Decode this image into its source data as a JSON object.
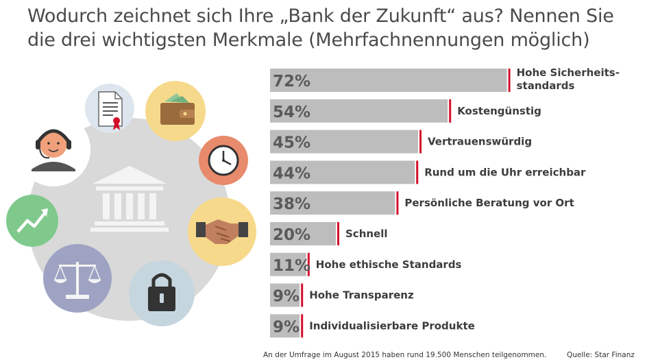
{
  "title": "Wodurch zeichnet sich Ihre „Bank der Zukunft“ aus? Nennen Sie die drei wichtigsten Merkmale (Mehrfachnennungen möglich)",
  "chart_data": {
    "type": "bar",
    "orientation": "horizontal",
    "title": "Wodurch zeichnet sich Ihre „Bank der Zukunft“ aus? Nennen Sie die drei wichtigsten Merkmale (Mehrfachnennungen möglich)",
    "categories": [
      "Hohe Sicherheits-\nstandards",
      "Kostengünstig",
      "Vertrauenswürdig",
      "Rund um die Uhr erreichbar",
      "Persönliche Beratung vor Ort",
      "Schnell",
      "Hohe ethische Standards",
      "Hohe Transparenz",
      "Individualisierbare Produkte"
    ],
    "values": [
      72,
      54,
      45,
      44,
      38,
      20,
      11,
      9,
      9
    ],
    "value_labels": [
      "72%",
      "54%",
      "45%",
      "44%",
      "38%",
      "20%",
      "11%",
      "9%",
      "9%"
    ],
    "unit": "%",
    "grid": false,
    "colors": {
      "bar": "#bdbdbd",
      "marker": "#d3102a",
      "value_text": "#5a5a5a",
      "label_text": "#3c3c3c"
    }
  },
  "illustration": {
    "icons": [
      "bank-building-icon",
      "call-center-agent-icon",
      "document-certificate-icon",
      "wallet-icon",
      "clock-icon",
      "handshake-icon",
      "padlock-icon",
      "scales-icon",
      "growth-chart-icon"
    ],
    "colors": {
      "hub": "#d9d9d9",
      "document": "#dde6ee",
      "wallet": "#f7d98b",
      "clock": "#e88a6c",
      "handshake": "#f7d98b",
      "padlock": "#c6d6df",
      "scales": "#9ea3c3",
      "growth": "#7fc98c"
    }
  },
  "footer": {
    "note": "An der Umfrage im August 2015 haben rund 19.500 Menschen teilgenommen.",
    "source": "Quelle: Star Finanz"
  }
}
